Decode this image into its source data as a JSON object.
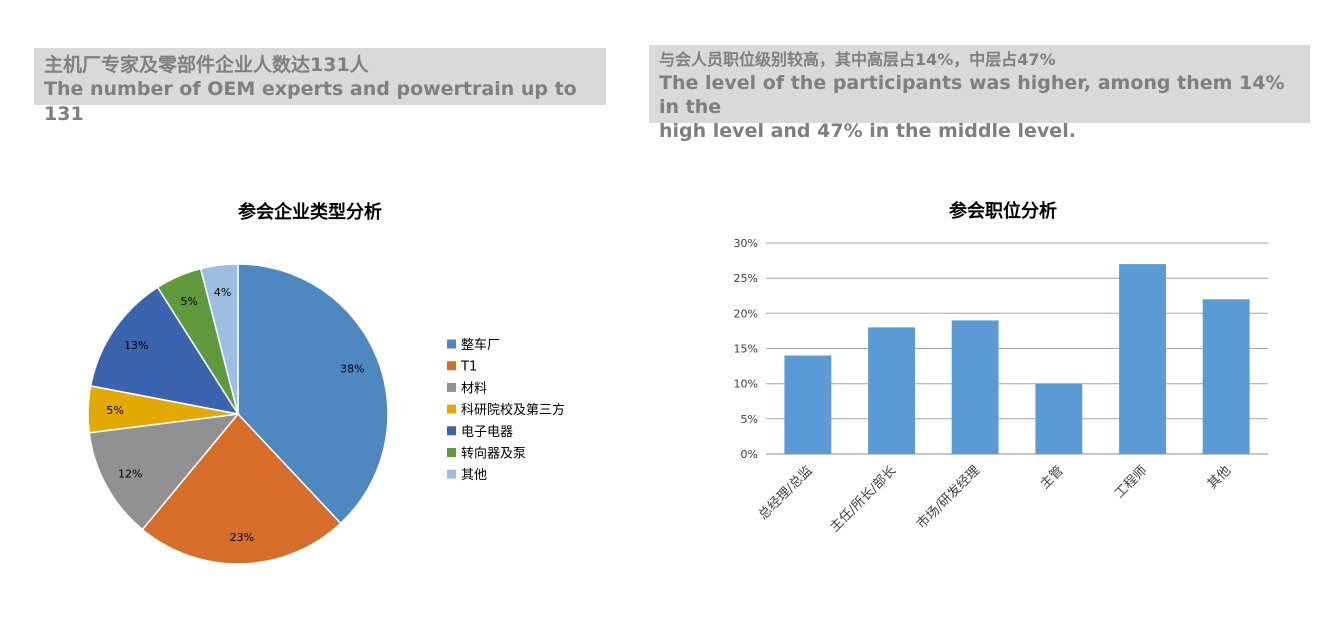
{
  "banners": {
    "left": {
      "zh": "主机厂专家及零部件企业人数达131人",
      "en": "The number of OEM experts and powertrain up to 131"
    },
    "right": {
      "zh": "与会人员职位级别较高，其中高层占14%，中层占47%",
      "en_line1": "The level of the participants was higher, among them 14% in the",
      "en_line2": "high level and 47% in the middle level."
    }
  },
  "chart_data": [
    {
      "type": "pie",
      "title": "参会企业类型分析",
      "legend_position": "right",
      "slices": [
        {
          "label": "整车厂",
          "value": 38,
          "display": "38%",
          "color": "#4f87c1"
        },
        {
          "label": "T1",
          "value": 23,
          "display": "23%",
          "color": "#d66e2a"
        },
        {
          "label": "材料",
          "value": 12,
          "display": "12%",
          "color": "#919191"
        },
        {
          "label": "科研院校及第三方",
          "value": 5,
          "display": "5%",
          "color": "#e3a900"
        },
        {
          "label": "电子电器",
          "value": 13,
          "display": "13%",
          "color": "#3b64ae"
        },
        {
          "label": "转向器及泵",
          "value": 5,
          "display": "5%",
          "color": "#609a3c"
        },
        {
          "label": "其他",
          "value": 4,
          "display": "4%",
          "color": "#9ebde2"
        }
      ]
    },
    {
      "type": "bar",
      "title": "参会职位分析",
      "categories": [
        "总经理/总监",
        "主任/所长/部长",
        "市场/研发经理",
        "主管",
        "工程师",
        "其他"
      ],
      "values": [
        14,
        18,
        19,
        10,
        27,
        22
      ],
      "value_unit": "%",
      "ylim": [
        0,
        30
      ],
      "yticks": [
        "0%",
        "5%",
        "10%",
        "15%",
        "20%",
        "25%",
        "30%"
      ],
      "grid": true,
      "bar_color": "#5b9bd5"
    }
  ]
}
